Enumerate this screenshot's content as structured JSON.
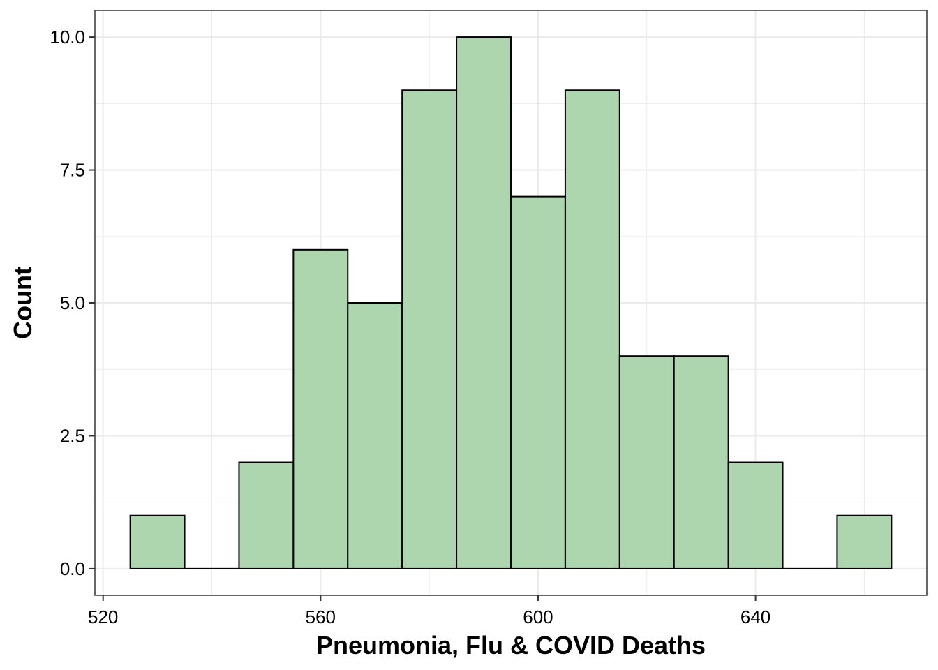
{
  "chart_data": {
    "type": "bar",
    "subtype": "histogram",
    "title": "",
    "xlabel": "Pneumonia, Flu & COVID Deaths",
    "ylabel": "Count",
    "bin_width": 10,
    "bins": [
      {
        "start": 525,
        "end": 535,
        "count": 1
      },
      {
        "start": 535,
        "end": 545,
        "count": 0
      },
      {
        "start": 545,
        "end": 555,
        "count": 2
      },
      {
        "start": 555,
        "end": 565,
        "count": 6
      },
      {
        "start": 565,
        "end": 575,
        "count": 5
      },
      {
        "start": 575,
        "end": 585,
        "count": 9
      },
      {
        "start": 585,
        "end": 595,
        "count": 10
      },
      {
        "start": 595,
        "end": 605,
        "count": 7
      },
      {
        "start": 605,
        "end": 615,
        "count": 9
      },
      {
        "start": 615,
        "end": 625,
        "count": 4
      },
      {
        "start": 625,
        "end": 635,
        "count": 4
      },
      {
        "start": 635,
        "end": 645,
        "count": 2
      },
      {
        "start": 645,
        "end": 655,
        "count": 0
      },
      {
        "start": 655,
        "end": 665,
        "count": 1
      }
    ],
    "xlim": [
      518.5,
      671.5
    ],
    "ylim": [
      -0.5,
      10.5
    ],
    "x_ticks": [
      520,
      560,
      600,
      640
    ],
    "x_tick_labels": [
      "520",
      "560",
      "600",
      "640"
    ],
    "y_ticks": [
      0,
      2.5,
      5,
      7.5,
      10
    ],
    "y_tick_labels": [
      "0.0",
      "2.5",
      "5.0",
      "7.5",
      "10.0"
    ],
    "grid": true,
    "legend": "none",
    "colors": {
      "bar_fill": "#aed6ae",
      "bar_stroke": "#000000",
      "grid": "#ebebeb",
      "panel_border": "#333333",
      "background": "#ffffff"
    }
  }
}
